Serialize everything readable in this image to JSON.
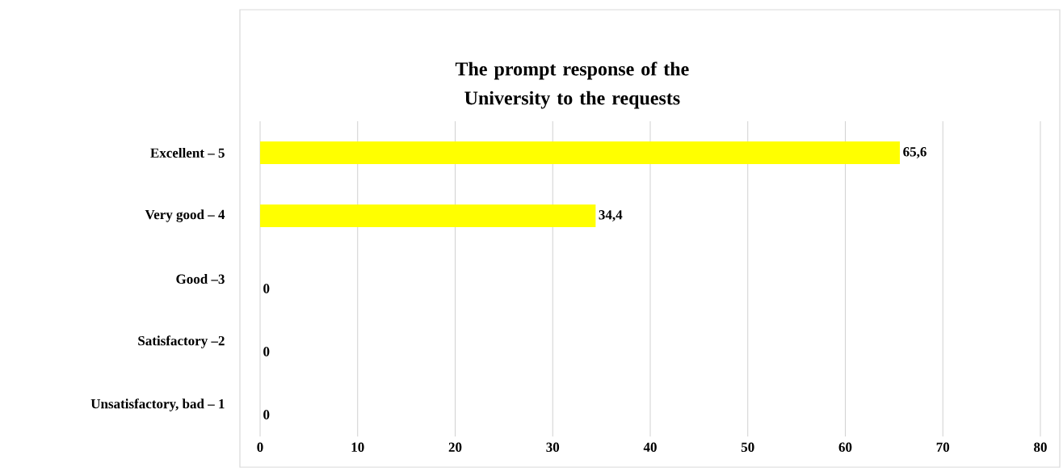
{
  "chart_data": {
    "type": "bar",
    "orientation": "horizontal",
    "title": "The prompt response of the University to the requests",
    "categories": [
      "Excellent – 5",
      "Very good – 4",
      "Good –3",
      "Satisfactory –2",
      "Unsatisfactory, bad – 1"
    ],
    "values": [
      65.6,
      34.4,
      0,
      0,
      0
    ],
    "value_labels": [
      "65,6",
      "34,4",
      "0",
      "0",
      "0"
    ],
    "color": "#ffff00",
    "xlim": [
      0,
      80
    ],
    "xticks": [
      0,
      10,
      20,
      30,
      40,
      50,
      60,
      70,
      80
    ],
    "grid": "x"
  }
}
